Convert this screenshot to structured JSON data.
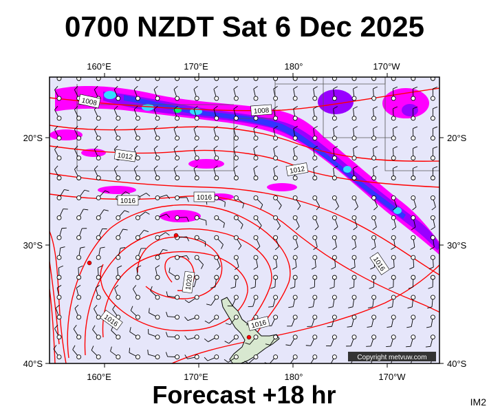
{
  "header": {
    "title": "0700 NZDT Sat 6 Dec 2025"
  },
  "footer": {
    "forecast_label": "Forecast +18 hr",
    "image_code": "IM2"
  },
  "map": {
    "copyright": "Copyright metvuw.com",
    "colors": {
      "background": "#e6e6fa",
      "isobar": "#ff0000",
      "land": "#d8e8d0",
      "rain_light": "#ff00ff",
      "rain_mid": "#9900ff",
      "rain_heavy": "#3333ff",
      "rain_intense": "#33ddff",
      "rain_extreme": "#00ff66"
    },
    "longitude_labels": [
      "160°E",
      "170°E",
      "180°",
      "170°W"
    ],
    "latitude_labels": [
      "20°S",
      "30°S",
      "40°S"
    ],
    "isobar_labels": [
      "1008",
      "1008",
      "1012",
      "1012",
      "1016",
      "1016",
      "1016",
      "1016",
      "1020",
      "1016"
    ]
  }
}
